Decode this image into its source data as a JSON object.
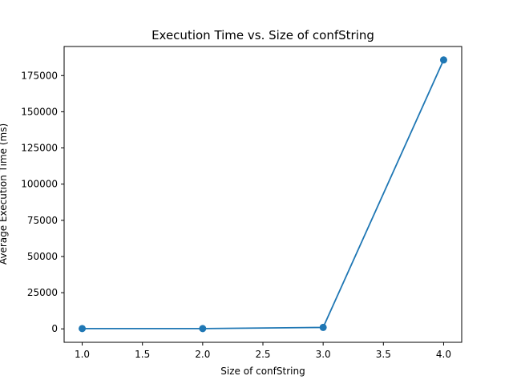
{
  "chart_data": {
    "type": "line",
    "title": "Execution Time vs. Size of confString",
    "xlabel": "Size of confString",
    "ylabel": "Average Execution Time (ms)",
    "x": [
      1.0,
      2.0,
      3.0,
      4.0
    ],
    "series": [
      {
        "values": [
          200,
          200,
          1000,
          185800
        ],
        "color": "#1f77b4",
        "marker": "circle"
      }
    ],
    "xlim": [
      0.85,
      4.15
    ],
    "ylim": [
      -9290,
      195090
    ],
    "xticks": [
      1.0,
      1.5,
      2.0,
      2.5,
      3.0,
      3.5,
      4.0
    ],
    "xtick_labels": [
      "1.0",
      "1.5",
      "2.0",
      "2.5",
      "3.0",
      "3.5",
      "4.0"
    ],
    "yticks": [
      0,
      25000,
      50000,
      75000,
      100000,
      125000,
      150000,
      175000
    ],
    "ytick_labels": [
      "0",
      "25000",
      "50000",
      "75000",
      "100000",
      "125000",
      "150000",
      "175000"
    ],
    "grid": false,
    "legend": "none"
  }
}
